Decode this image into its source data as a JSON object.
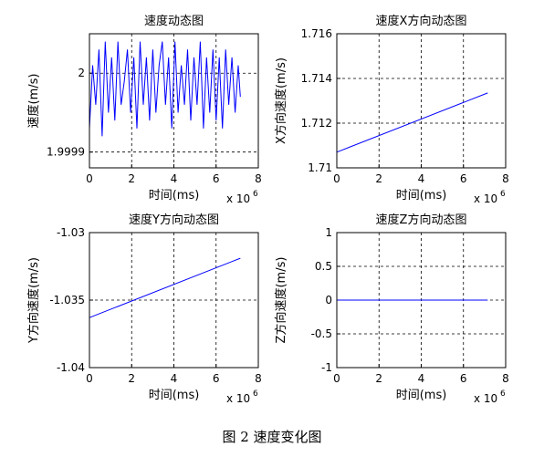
{
  "caption": "图 2  速度变化图",
  "chart_data": [
    {
      "type": "line",
      "title": "速度动态图",
      "xlabel": "时间(ms)",
      "ylabel": "速度(m/s)",
      "x_exponent_label": "x 10",
      "x_exponent": "6",
      "xlim": [
        0,
        8
      ],
      "ylim": [
        1.99988,
        2.00005
      ],
      "xticks": [
        "0",
        "2",
        "4",
        "6",
        "8"
      ],
      "yticks": [
        "1.9999",
        "2"
      ],
      "ytick_values": [
        1.9999,
        2.0
      ],
      "grid": true,
      "color": "#0000ff",
      "x": [
        0,
        0.15,
        0.3,
        0.45,
        0.6,
        0.75,
        0.9,
        1.05,
        1.2,
        1.35,
        1.5,
        1.65,
        1.8,
        1.95,
        2.1,
        2.25,
        2.4,
        2.55,
        2.7,
        2.85,
        3.0,
        3.15,
        3.3,
        3.45,
        3.6,
        3.75,
        3.9,
        4.05,
        4.2,
        4.35,
        4.5,
        4.65,
        4.8,
        4.95,
        5.1,
        5.25,
        5.4,
        5.55,
        5.7,
        5.85,
        6.0,
        6.15,
        6.3,
        6.45,
        6.6,
        6.75,
        6.9,
        7.05,
        7.15
      ],
      "y": [
        1.99993,
        2.00001,
        1.99996,
        2.00003,
        1.99992,
        2.00004,
        1.99995,
        2.00002,
        1.99994,
        2.00004,
        1.99996,
        1.99999,
        2.00003,
        1.99995,
        2.00002,
        1.99993,
        2.00004,
        1.99996,
        2.00002,
        1.99994,
        2.00003,
        1.99995,
        2.00001,
        2.00004,
        1.99996,
        2.00002,
        1.99993,
        2.00004,
        1.99995,
        2.00001,
        1.99996,
        2.00003,
        1.99994,
        2.00002,
        1.99996,
        2.00004,
        1.99993,
        2.00002,
        1.99995,
        2.00003,
        1.99994,
        2.00002,
        1.99993,
        2.00003,
        1.99996,
        2.00002,
        1.99995,
        2.00001,
        1.99997
      ]
    },
    {
      "type": "line",
      "title": "速度X方向动态图",
      "xlabel": "时间(ms)",
      "ylabel": "X方向速度(m/s)",
      "x_exponent_label": "x 10",
      "x_exponent": "6",
      "xlim": [
        0,
        8
      ],
      "ylim": [
        1.71,
        1.716
      ],
      "xticks": [
        "0",
        "2",
        "4",
        "6",
        "8"
      ],
      "yticks": [
        "1.71",
        "1.712",
        "1.714",
        "1.716"
      ],
      "ytick_values": [
        1.71,
        1.712,
        1.714,
        1.716
      ],
      "grid": true,
      "color": "#0000ff",
      "x": [
        0,
        7.15
      ],
      "y": [
        1.7107,
        1.71335
      ]
    },
    {
      "type": "line",
      "title": "速度Y方向动态图",
      "xlabel": "时间(ms)",
      "ylabel": "Y方向速度(m/s)",
      "x_exponent_label": "x 10",
      "x_exponent": "6",
      "xlim": [
        0,
        8
      ],
      "ylim": [
        -1.04,
        -1.03
      ],
      "xticks": [
        "0",
        "2",
        "4",
        "6",
        "8"
      ],
      "yticks": [
        "-1.04",
        "-1.035",
        "-1.03"
      ],
      "ytick_values": [
        -1.04,
        -1.035,
        -1.03
      ],
      "grid": true,
      "color": "#0000ff",
      "x": [
        0,
        7.15
      ],
      "y": [
        -1.0363,
        -1.0319
      ]
    },
    {
      "type": "line",
      "title": "速度Z方向动态图",
      "xlabel": "时间(ms)",
      "ylabel": "Z方向速度(m/s)",
      "x_exponent_label": "x 10",
      "x_exponent": "6",
      "xlim": [
        0,
        8
      ],
      "ylim": [
        -1,
        1
      ],
      "xticks": [
        "0",
        "2",
        "4",
        "6",
        "8"
      ],
      "yticks": [
        "-1",
        "-0.5",
        "0",
        "0.5",
        "1"
      ],
      "ytick_values": [
        -1,
        -0.5,
        0,
        0.5,
        1
      ],
      "grid": true,
      "color": "#0000ff",
      "x": [
        0,
        7.15
      ],
      "y": [
        0,
        0
      ]
    }
  ]
}
